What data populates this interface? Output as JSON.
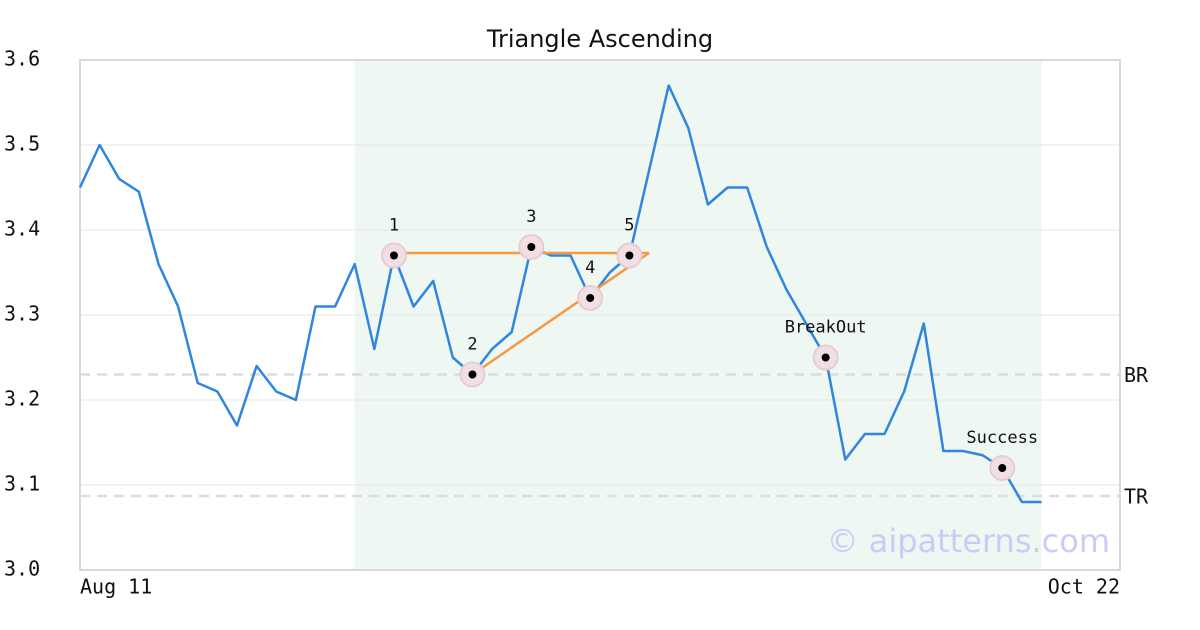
{
  "chart_data": {
    "type": "line",
    "title": "Triangle Ascending",
    "x": [
      0,
      1,
      2,
      3,
      4,
      5,
      6,
      7,
      8,
      9,
      10,
      11,
      12,
      13,
      14,
      15,
      16,
      17,
      18,
      19,
      20,
      21,
      22,
      23,
      24,
      25,
      26,
      27,
      28,
      29,
      30,
      31,
      32,
      33,
      34,
      35,
      36,
      37,
      38,
      39,
      40,
      41,
      42,
      43,
      44,
      45,
      46,
      47,
      48,
      49
    ],
    "series": [
      {
        "color": "#2f86e0",
        "values": [
          3.45,
          3.5,
          3.46,
          3.445,
          3.36,
          3.31,
          3.22,
          3.21,
          3.17,
          3.24,
          3.21,
          3.2,
          3.31,
          3.31,
          3.36,
          3.26,
          3.37,
          3.31,
          3.34,
          3.25,
          3.23,
          3.26,
          3.28,
          3.38,
          3.37,
          3.37,
          3.32,
          3.35,
          3.37,
          3.47,
          3.57,
          3.52,
          3.43,
          3.45,
          3.45,
          3.38,
          3.33,
          3.29,
          3.25,
          3.13,
          3.16,
          3.16,
          3.21,
          3.29,
          3.14,
          3.14,
          3.135,
          3.12,
          3.08,
          3.08
        ]
      }
    ],
    "xlim": [
      0,
      53
    ],
    "xticks": [
      {
        "value": 0,
        "label": "Aug 11"
      },
      {
        "value": 53,
        "label": "Oct 22"
      }
    ],
    "ylim": [
      3.0,
      3.6
    ],
    "yticks": [
      {
        "value": 3.0,
        "label": "3.0"
      },
      3.1,
      3.2,
      3.3,
      3.4,
      3.5,
      3.6
    ],
    "grid": true,
    "highlight_range": [
      14,
      49
    ],
    "trendline_color": "#f59a42",
    "trendlines": [
      {
        "x": [
          16,
          29
        ],
        "y": [
          3.373,
          3.373
        ]
      },
      {
        "x": [
          20,
          29
        ],
        "y": [
          3.23,
          3.373
        ]
      }
    ],
    "reference_lines": [
      {
        "label": "BR",
        "value": 3.23
      },
      {
        "label": "TR",
        "value": 3.087
      }
    ],
    "annotations": [
      {
        "label": "1",
        "x": 16,
        "y": 3.37
      },
      {
        "label": "2",
        "x": 20,
        "y": 3.23
      },
      {
        "label": "3",
        "x": 23,
        "y": 3.38
      },
      {
        "label": "4",
        "x": 26,
        "y": 3.32
      },
      {
        "label": "5",
        "x": 28,
        "y": 3.37
      },
      {
        "label": "BreakOut",
        "x": 38,
        "y": 3.25
      },
      {
        "label": "Success",
        "x": 47,
        "y": 3.12
      }
    ],
    "watermark": "© aipatterns.com"
  }
}
